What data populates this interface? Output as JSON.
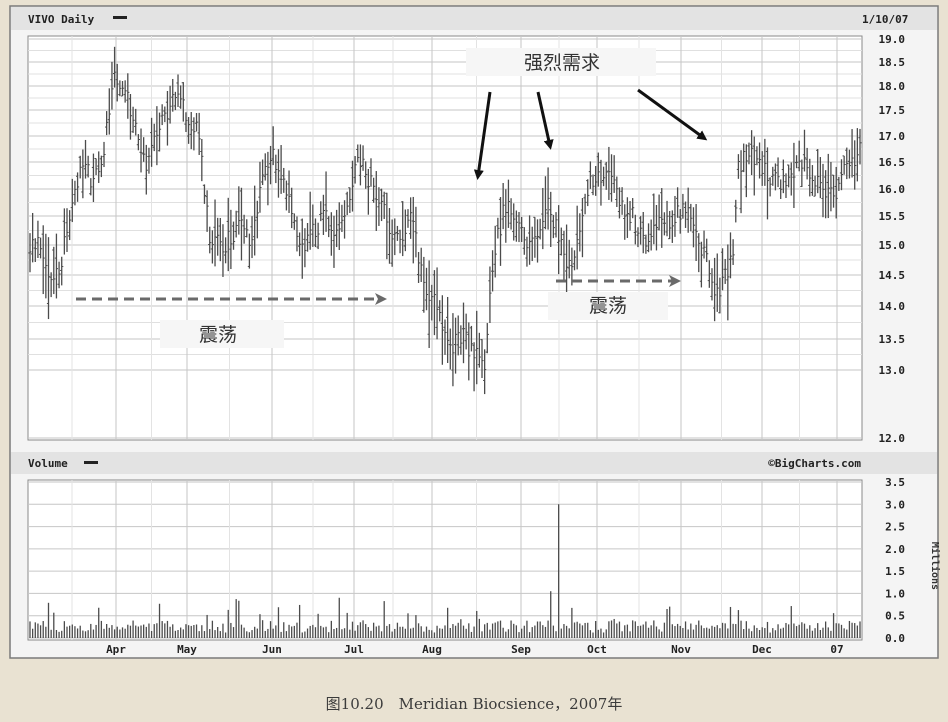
{
  "chart_data": [
    {
      "type": "ohlc",
      "title": "VIVO Daily",
      "date_label": "1/10/07",
      "months": [
        "Apr",
        "May",
        "Jun",
        "Jul",
        "Aug",
        "Sep",
        "Oct",
        "Nov",
        "Dec",
        "07"
      ],
      "y_ticks": [
        "19.0",
        "18.5",
        "18.0",
        "17.5",
        "17.0",
        "16.5",
        "16.0",
        "15.5",
        "15.0",
        "14.5",
        "14.0",
        "13.5",
        "13.0",
        "12.0"
      ],
      "ylim": [
        12.0,
        19.0
      ],
      "price_anchors": [
        [
          0,
          14.9
        ],
        [
          4,
          15.0
        ],
        [
          8,
          14.3
        ],
        [
          12,
          14.8
        ],
        [
          16,
          15.8
        ],
        [
          20,
          16.5
        ],
        [
          24,
          16.1
        ],
        [
          28,
          16.8
        ],
        [
          32,
          18.2
        ],
        [
          36,
          18.0
        ],
        [
          40,
          17.1
        ],
        [
          44,
          16.5
        ],
        [
          48,
          17.1
        ],
        [
          52,
          17.5
        ],
        [
          56,
          17.8
        ],
        [
          60,
          17.3
        ],
        [
          64,
          17.1
        ],
        [
          68,
          15.0
        ],
        [
          72,
          15.0
        ],
        [
          76,
          15.1
        ],
        [
          80,
          15.3
        ],
        [
          84,
          15.0
        ],
        [
          88,
          16.3
        ],
        [
          92,
          16.6
        ],
        [
          96,
          16.1
        ],
        [
          100,
          15.3
        ],
        [
          104,
          15.0
        ],
        [
          108,
          15.3
        ],
        [
          112,
          15.5
        ],
        [
          116,
          15.2
        ],
        [
          120,
          15.6
        ],
        [
          124,
          16.6
        ],
        [
          128,
          16.2
        ],
        [
          132,
          15.8
        ],
        [
          136,
          15.3
        ],
        [
          140,
          15.1
        ],
        [
          144,
          15.6
        ],
        [
          148,
          14.5
        ],
        [
          152,
          14.1
        ],
        [
          156,
          13.8
        ],
        [
          160,
          13.4
        ],
        [
          164,
          13.6
        ],
        [
          168,
          13.2
        ],
        [
          172,
          13.1
        ],
        [
          174,
          14.2
        ],
        [
          176,
          15.0
        ],
        [
          180,
          15.7
        ],
        [
          184,
          15.4
        ],
        [
          188,
          15.0
        ],
        [
          192,
          15.3
        ],
        [
          196,
          15.8
        ],
        [
          200,
          15.1
        ],
        [
          204,
          14.7
        ],
        [
          206,
          14.9
        ],
        [
          208,
          15.4
        ],
        [
          212,
          16.2
        ],
        [
          216,
          16.3
        ],
        [
          220,
          16.1
        ],
        [
          224,
          15.7
        ],
        [
          228,
          15.5
        ],
        [
          232,
          15.1
        ],
        [
          236,
          15.3
        ],
        [
          240,
          15.4
        ],
        [
          244,
          15.5
        ],
        [
          248,
          15.6
        ],
        [
          252,
          15.2
        ],
        [
          256,
          14.7
        ],
        [
          260,
          14.2
        ],
        [
          264,
          14.5
        ],
        [
          266,
          15.0
        ],
        [
          268,
          16.4
        ],
        [
          272,
          16.7
        ],
        [
          276,
          16.5
        ],
        [
          280,
          16.2
        ],
        [
          284,
          16.1
        ],
        [
          288,
          16.3
        ],
        [
          292,
          16.5
        ],
        [
          296,
          16.3
        ],
        [
          300,
          16.0
        ],
        [
          304,
          15.9
        ],
        [
          308,
          16.3
        ],
        [
          312,
          16.5
        ],
        [
          314,
          16.8
        ]
      ],
      "annotations": {
        "strong_demand": "强烈需求",
        "consolidation": "震荡"
      }
    },
    {
      "type": "bar",
      "title": "Volume",
      "source": "©BigCharts.com",
      "y_ticks": [
        "3.5",
        "3.0",
        "2.5",
        "2.0",
        "1.5",
        "1.0",
        "0.5",
        "0.0"
      ],
      "ylabel": "Millions",
      "ylim": [
        0.0,
        3.5
      ],
      "peak": {
        "month_index": 5,
        "value": 3.0
      }
    }
  ],
  "caption": "图10.20　Meridian Biocsience，2007年",
  "colors": {
    "background": "#e9e2d2",
    "panel": "#f4f4f4",
    "grid": "#c6c6c6",
    "bars": "#4b4b4b",
    "header": "#e3e3e3"
  }
}
